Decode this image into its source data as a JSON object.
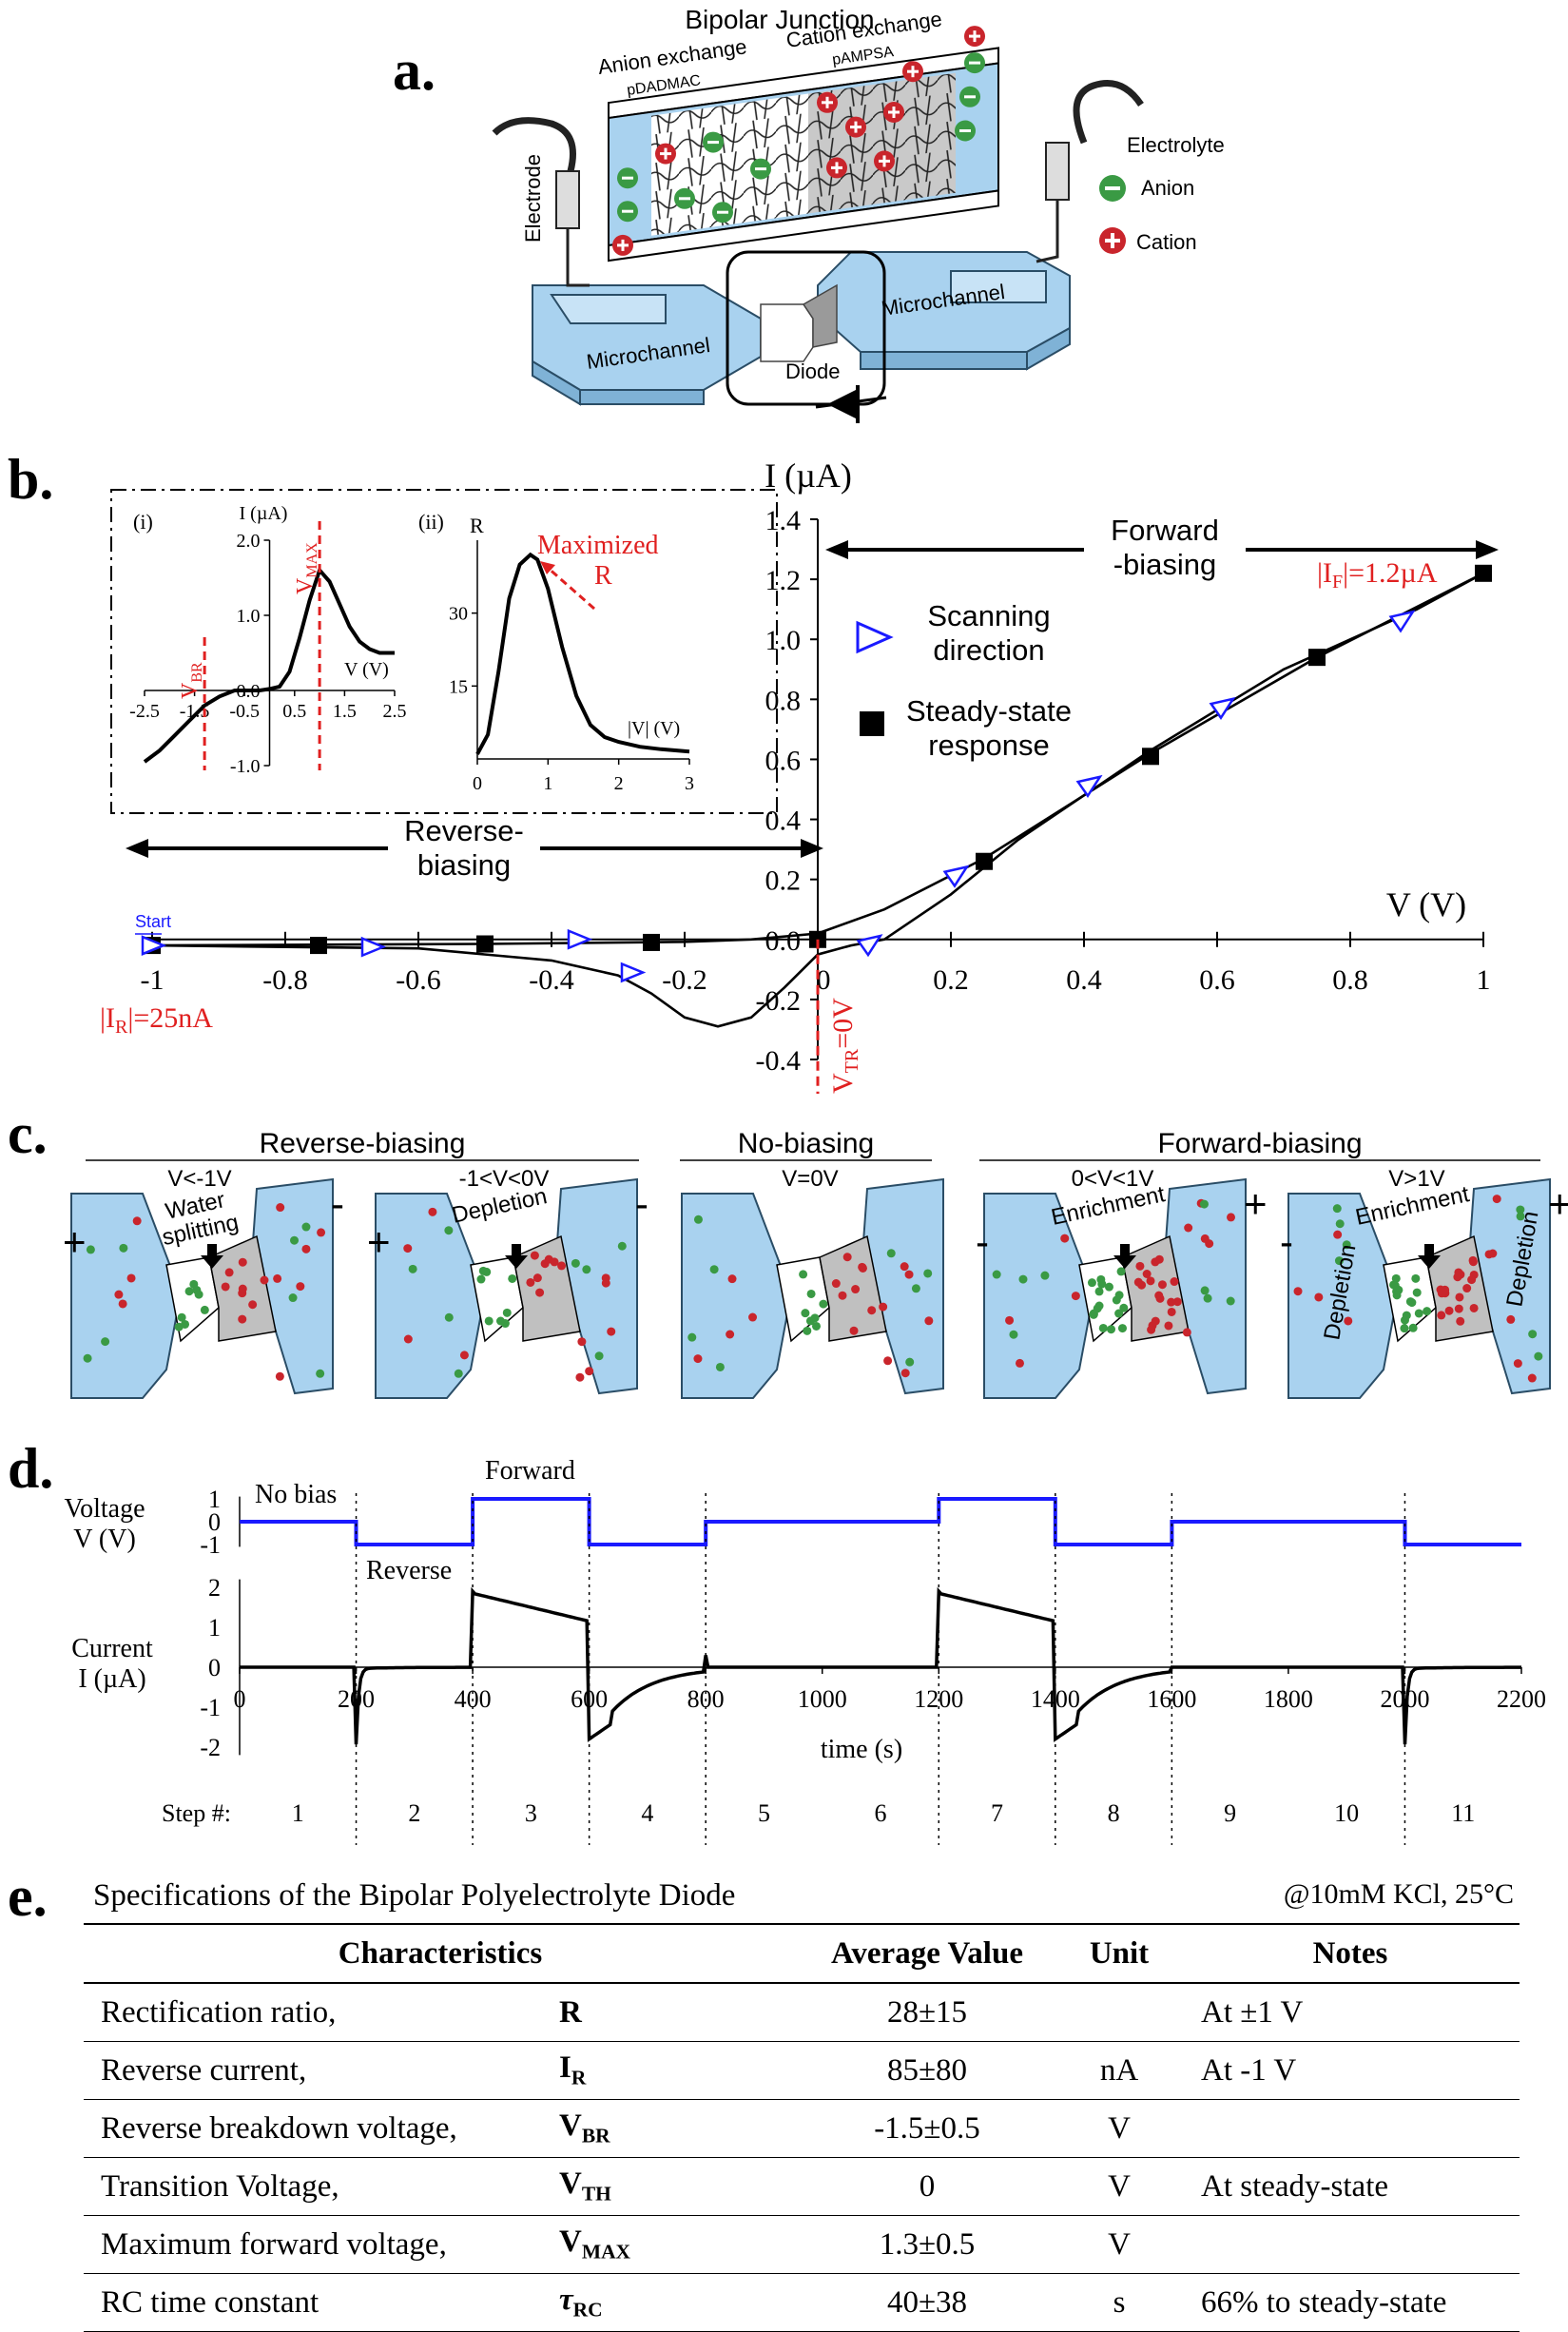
{
  "panel_labels": {
    "a": "a.",
    "b": "b.",
    "c": "c.",
    "d": "d.",
    "e": "e."
  },
  "panel_a": {
    "title": "Bipolar Junction",
    "left_layer": "Anion exchange",
    "left_polymer": "pDADMAC",
    "right_layer": "Cation exchange",
    "right_polymer": "pAMPSA",
    "electrode": "Electrode",
    "microchannel_left": "Microchannel",
    "microchannel_right": "Microchannel",
    "diode": "Diode",
    "legend_title": "Electrolyte",
    "legend_anion": "Anion",
    "legend_cation": "Cation",
    "colors": {
      "channel": "#a9d2ef",
      "anion": "#3a9a44",
      "cation": "#c9252c"
    }
  },
  "chart_data": [
    {
      "type": "line",
      "id": "b-main",
      "title": "",
      "xlabel": "V (V)",
      "ylabel": "I (µA)",
      "xlim": [
        -1,
        1
      ],
      "ylim": [
        -0.4,
        1.4
      ],
      "xticks": [
        "-1",
        "-0.8",
        "-0.6",
        "-0.4",
        "-0.2",
        "0",
        "0.2",
        "0.4",
        "0.6",
        "0.8",
        "1"
      ],
      "yticks": [
        "-0.4",
        "-0.2",
        "0.0",
        "0.2",
        "0.4",
        "0.6",
        "0.8",
        "1.0",
        "1.2",
        "1.4"
      ],
      "series": [
        {
          "name": "Scanning direction",
          "marker": "open-triangle",
          "color": "#1a1aff",
          "x": [
            -1.0,
            -0.67,
            -0.36,
            -0.28,
            0.08,
            0.21,
            0.41,
            0.61,
            0.88
          ],
          "y": [
            -0.02,
            -0.025,
            0.0,
            -0.11,
            -0.01,
            0.22,
            0.52,
            0.78,
            1.07
          ]
        },
        {
          "name": "Steady-state response",
          "marker": "filled-square",
          "color": "#000000",
          "x": [
            -1.0,
            -0.75,
            -0.5,
            -0.25,
            0.0,
            0.25,
            0.5,
            0.75,
            1.0
          ],
          "y": [
            -0.02,
            -0.02,
            -0.015,
            -0.01,
            0.0,
            0.26,
            0.61,
            0.94,
            1.22
          ]
        },
        {
          "name": "scan-curve",
          "marker": "none",
          "x": [
            -1.0,
            -0.6,
            -0.4,
            -0.3,
            -0.25,
            -0.2,
            -0.15,
            -0.1,
            -0.05,
            0.0,
            0.05,
            0.1,
            0.2,
            0.3,
            0.5,
            0.7,
            0.9,
            1.0
          ],
          "y": [
            -0.02,
            -0.03,
            -0.07,
            -0.12,
            -0.18,
            -0.26,
            -0.29,
            -0.26,
            -0.16,
            -0.05,
            -0.02,
            0.0,
            0.15,
            0.33,
            0.63,
            0.9,
            1.1,
            1.22
          ]
        },
        {
          "name": "steady-curve",
          "marker": "none",
          "x": [
            -1.0,
            -0.5,
            -0.2,
            -0.1,
            0.0,
            0.1,
            0.25,
            0.5,
            0.75,
            1.0
          ],
          "y": [
            -0.02,
            -0.015,
            -0.008,
            0.0,
            0.02,
            0.1,
            0.27,
            0.62,
            0.94,
            1.22
          ]
        }
      ],
      "annotations": {
        "forward": "Forward\n-biasing",
        "reverse": "Reverse-\nbiasing",
        "start": "Start",
        "if_label": "|I",
        "if_sub": "F",
        "if_val": "|=1.2µA",
        "ir_label": "|I",
        "ir_sub": "R",
        "ir_val": "|=25nA",
        "vtr_label": "V",
        "vtr_sub": "TR",
        "vtr_val": "=0V",
        "legend_scan": "Scanning\ndirection",
        "legend_steady": "Steady-state\nresponse"
      }
    },
    {
      "type": "line",
      "id": "b-inset-i",
      "title": "(i)",
      "xlabel": "V (V)",
      "ylabel": "I (µA)",
      "xlim": [
        -2.5,
        2.5
      ],
      "ylim": [
        -1.0,
        2.0
      ],
      "xticks": [
        "-2.5",
        "-1.5",
        "-0.5",
        "0.5",
        "1.5",
        "2.5"
      ],
      "yticks": [
        "-1.0",
        "0.0",
        "1.0",
        "2.0"
      ],
      "series": [
        {
          "name": "I-V",
          "x": [
            -2.5,
            -2.2,
            -1.9,
            -1.6,
            -1.3,
            -1.0,
            -0.7,
            -0.4,
            -0.2,
            0.0,
            0.2,
            0.4,
            0.6,
            0.8,
            1.0,
            1.2,
            1.4,
            1.6,
            1.8,
            2.0,
            2.2,
            2.5
          ],
          "y": [
            -0.95,
            -0.8,
            -0.6,
            -0.4,
            -0.2,
            -0.08,
            0.0,
            0.0,
            0.0,
            0.02,
            0.05,
            0.25,
            0.7,
            1.2,
            1.6,
            1.45,
            1.15,
            0.85,
            0.65,
            0.55,
            0.5,
            0.5
          ]
        }
      ],
      "annotations": {
        "vbr": "V",
        "vbr_sub": "BR",
        "vmax": "V",
        "vmax_sub": "MAX",
        "vbr_x": -1.3,
        "vmax_x": 1.0
      }
    },
    {
      "type": "line",
      "id": "b-inset-ii",
      "title": "(ii)",
      "xlabel": "|V| (V)",
      "ylabel": "R",
      "xlim": [
        0,
        3
      ],
      "ylim": [
        0,
        45
      ],
      "xticks": [
        "0",
        "1",
        "2",
        "3"
      ],
      "yticks": [
        "15",
        "30"
      ],
      "series": [
        {
          "name": "R",
          "x": [
            0.0,
            0.15,
            0.3,
            0.45,
            0.6,
            0.75,
            0.85,
            1.0,
            1.2,
            1.4,
            1.6,
            1.8,
            2.0,
            2.3,
            2.6,
            3.0
          ],
          "y": [
            1.0,
            5.0,
            18.0,
            33.0,
            40.0,
            42.0,
            41.0,
            35.0,
            23.0,
            13.0,
            7.0,
            4.5,
            3.5,
            2.5,
            2.0,
            1.5
          ]
        }
      ],
      "annotations": {
        "maxr": "Maximized\nR"
      }
    },
    {
      "type": "line",
      "id": "d-voltage",
      "xlabel": "",
      "ylabel": "Voltage\nV (V)",
      "xlim": [
        0,
        2200
      ],
      "ylim": [
        -1,
        1
      ],
      "yticks": [
        "1",
        "0",
        "-1"
      ],
      "series": [
        {
          "name": "voltage",
          "color": "#1a1aff",
          "x": [
            0,
            200,
            200,
            400,
            400,
            600,
            600,
            800,
            800,
            1200,
            1200,
            1400,
            1400,
            1600,
            1600,
            2000,
            2000,
            2200
          ],
          "y": [
            0,
            0,
            -1,
            -1,
            1,
            1,
            -1,
            -1,
            0,
            0,
            1,
            1,
            -1,
            -1,
            0,
            0,
            -1,
            -1
          ]
        }
      ],
      "annotations": {
        "no_bias": "No bias",
        "forward": "Forward",
        "reverse": "Reverse"
      }
    },
    {
      "type": "line",
      "id": "d-current",
      "xlabel": "time (s)",
      "ylabel": "Current\nI (µA)",
      "xlim": [
        0,
        2200
      ],
      "ylim": [
        -2,
        2
      ],
      "xticks": [
        "0",
        "200",
        "400",
        "600",
        "800",
        "1000",
        "1200",
        "1400",
        "1600",
        "1800",
        "2000",
        "2200"
      ],
      "yticks": [
        "2",
        "1",
        "0",
        "-1",
        "-2"
      ],
      "steps_label": "Step #:",
      "steps": [
        "1",
        "2",
        "3",
        "4",
        "5",
        "6",
        "7",
        "8",
        "9",
        "10",
        "11"
      ]
    }
  ],
  "panel_c": {
    "groups": [
      "Reverse-biasing",
      "No-biasing",
      "Forward-biasing"
    ],
    "conditions": [
      "V<-1V",
      "-1<V<0V",
      "V=0V",
      "0<V<1V",
      "V>1V"
    ],
    "labels": {
      "water": "Water\nsplitting",
      "depletion": "Depletion",
      "enrichment": "Enrichment"
    }
  },
  "table": {
    "caption": "Specifications of the Bipolar Polyelectrolyte Diode",
    "conditions": "@10mM KCl, 25°C",
    "headers": [
      "Characteristics",
      "Average Value",
      "Unit",
      "Notes"
    ],
    "rows": [
      {
        "name": "Rectification ratio,",
        "sym": "R",
        "sub": "",
        "value": "28±15",
        "unit": "",
        "note": "At ±1 V"
      },
      {
        "name": "Reverse current,",
        "sym": "I",
        "sub": "R",
        "value": "85±80",
        "unit": "nA",
        "note": "At -1 V"
      },
      {
        "name": "Reverse breakdown voltage,",
        "sym": "V",
        "sub": "BR",
        "value": "-1.5±0.5",
        "unit": "V",
        "note": ""
      },
      {
        "name": "Transition Voltage,",
        "sym": "V",
        "sub": "TH",
        "value": "0",
        "unit": "V",
        "note": "At steady-state"
      },
      {
        "name": "Maximum forward voltage,",
        "sym": "V",
        "sub": "MAX",
        "value": "1.3±0.5",
        "unit": "V",
        "note": ""
      },
      {
        "name": "RC time constant",
        "sym": "τ",
        "sub": "RC",
        "value": "40±38",
        "unit": "s",
        "note": "66% to steady-state"
      }
    ]
  }
}
